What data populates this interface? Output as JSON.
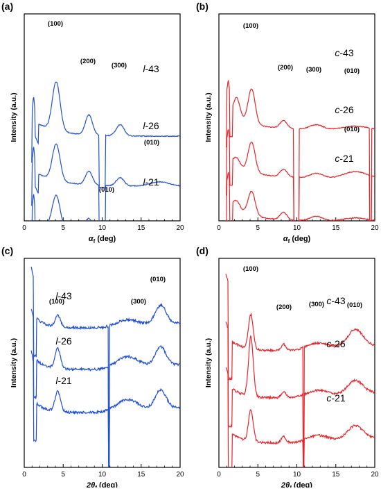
{
  "chart_data": [
    {
      "type": "line",
      "panel_label": "(a)",
      "color": "#1f4fd8",
      "xlabel_main": "α",
      "xlabel_sub": "f",
      "xlabel_unit": " (deg)",
      "ylabel": "Intensity (a.u.)",
      "xlim": [
        0,
        20
      ],
      "xticks": [
        "0",
        "5",
        "10",
        "15",
        "20"
      ],
      "series": [
        {
          "name": "l-43",
          "name_prefix": "l",
          "name_suffix": "-43"
        },
        {
          "name": "l-26",
          "name_prefix": "l",
          "name_suffix": "-26"
        },
        {
          "name": "l-21",
          "name_prefix": "l",
          "name_suffix": "-21"
        }
      ],
      "annotations": [
        "(100)",
        "(200)",
        "(300)",
        "(010)",
        "(010)"
      ]
    },
    {
      "type": "line",
      "panel_label": "(b)",
      "color": "#e8242a",
      "xlabel_main": "α",
      "xlabel_sub": "f",
      "xlabel_unit": " (deg)",
      "ylabel": "Intensity (a.u.)",
      "xlim": [
        0,
        20
      ],
      "xticks": [
        "0",
        "5",
        "10",
        "15",
        "20"
      ],
      "series": [
        {
          "name": "c-43",
          "name_prefix": "c",
          "name_suffix": "-43"
        },
        {
          "name": "c-26",
          "name_prefix": "c",
          "name_suffix": "-26"
        },
        {
          "name": "c-21",
          "name_prefix": "c",
          "name_suffix": "-21"
        }
      ],
      "annotations": [
        "(100)",
        "(200)",
        "(300)",
        "(010)",
        "(010)"
      ]
    },
    {
      "type": "line",
      "panel_label": "(c)",
      "color": "#1f4fd8",
      "xlabel_main": "2θ",
      "xlabel_sub": "f",
      "xlabel_unit": " (deg)",
      "ylabel": "Intensity (a.u.)",
      "xlim": [
        0,
        20
      ],
      "xticks": [
        "0",
        "5",
        "10",
        "15",
        "20"
      ],
      "series": [
        {
          "name": "l-43",
          "name_prefix": "l",
          "name_suffix": "-43"
        },
        {
          "name": "l-26",
          "name_prefix": "l",
          "name_suffix": "-26"
        },
        {
          "name": "l-21",
          "name_prefix": "l",
          "name_suffix": "-21"
        }
      ],
      "annotations": [
        "(100)",
        "(300)",
        "(010)"
      ]
    },
    {
      "type": "line",
      "panel_label": "(d)",
      "color": "#e8242a",
      "xlabel_main": "2θ",
      "xlabel_sub": "f",
      "xlabel_unit": " (deg)",
      "ylabel": "Intensity (a.u.)",
      "xlim": [
        0,
        20
      ],
      "xticks": [
        "0",
        "5",
        "10",
        "15",
        "20"
      ],
      "series": [
        {
          "name": "c-43",
          "name_prefix": "c",
          "name_suffix": "-43"
        },
        {
          "name": "c-26",
          "name_prefix": "c",
          "name_suffix": "-26"
        },
        {
          "name": "c-21",
          "name_prefix": "c",
          "name_suffix": "-21"
        }
      ],
      "annotations": [
        "(100)",
        "(200)",
        "(300)",
        "(010)"
      ]
    }
  ]
}
